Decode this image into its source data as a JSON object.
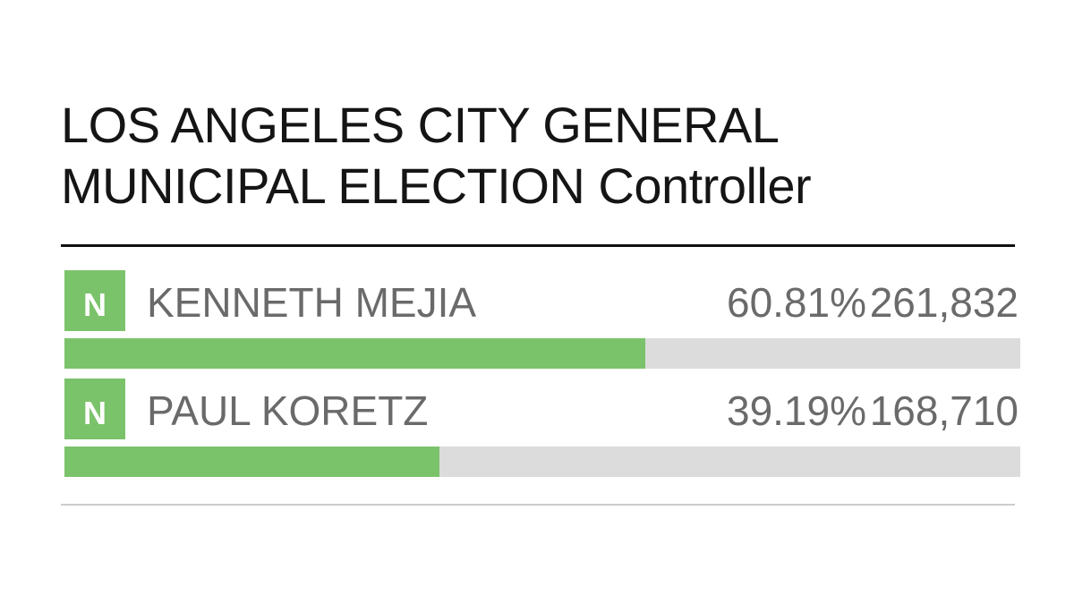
{
  "race": {
    "title": "LOS ANGELES CITY GENERAL MUNICIPAL ELECTION Controller"
  },
  "colors": {
    "badge": "#7bc36a",
    "bar_fill": "#7bc36a",
    "bar_track": "#dcdcdc",
    "text_muted": "#6a6a6a"
  },
  "candidates": [
    {
      "badge": "N",
      "name": "KENNETH MEJIA",
      "percent_label": "60.81%",
      "percent": 60.81,
      "votes": "261,832"
    },
    {
      "badge": "N",
      "name": "PAUL KORETZ",
      "percent_label": "39.19%",
      "percent": 39.19,
      "votes": "168,710"
    }
  ]
}
